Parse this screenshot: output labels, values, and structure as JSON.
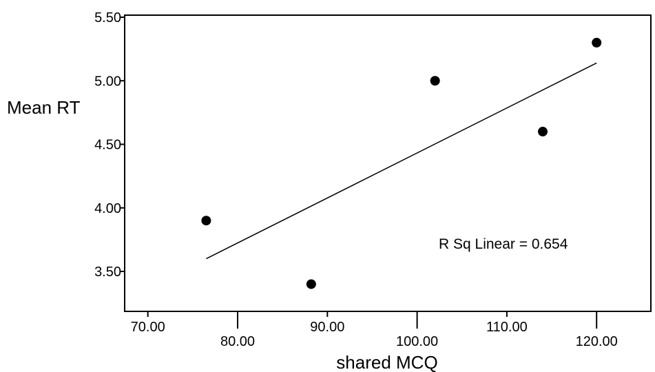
{
  "chart_data": {
    "type": "scatter",
    "xlabel": "shared MCQ",
    "ylabel": "Mean RT",
    "xlim": [
      67.5,
      123.5
    ],
    "ylim": [
      3.15,
      5.5
    ],
    "x_ticks": [
      {
        "value": 70,
        "label": "70.00"
      },
      {
        "value": 80,
        "label": "80.00"
      },
      {
        "value": 90,
        "label": "90.00"
      },
      {
        "value": 100,
        "label": "100.00"
      },
      {
        "value": 110,
        "label": "110.00"
      },
      {
        "value": 120,
        "label": "120.00"
      }
    ],
    "y_ticks": [
      {
        "value": 3.5,
        "label": "3.50"
      },
      {
        "value": 4.0,
        "label": "4.00"
      },
      {
        "value": 4.5,
        "label": "4.50"
      },
      {
        "value": 5.0,
        "label": "5.00"
      },
      {
        "value": 5.5,
        "label": "5.50"
      }
    ],
    "points": [
      {
        "x": 76.5,
        "y": 3.9
      },
      {
        "x": 88.2,
        "y": 3.4
      },
      {
        "x": 102.0,
        "y": 5.0
      },
      {
        "x": 114.0,
        "y": 4.6
      },
      {
        "x": 120.0,
        "y": 5.3
      }
    ],
    "fit_line": {
      "x": [
        76.5,
        120.0
      ],
      "y": [
        3.6,
        5.14
      ]
    },
    "annotation": "R Sq Linear = 0.654",
    "colors": {
      "marker": "#000000",
      "line": "#000000",
      "background": "#ffffff"
    }
  }
}
